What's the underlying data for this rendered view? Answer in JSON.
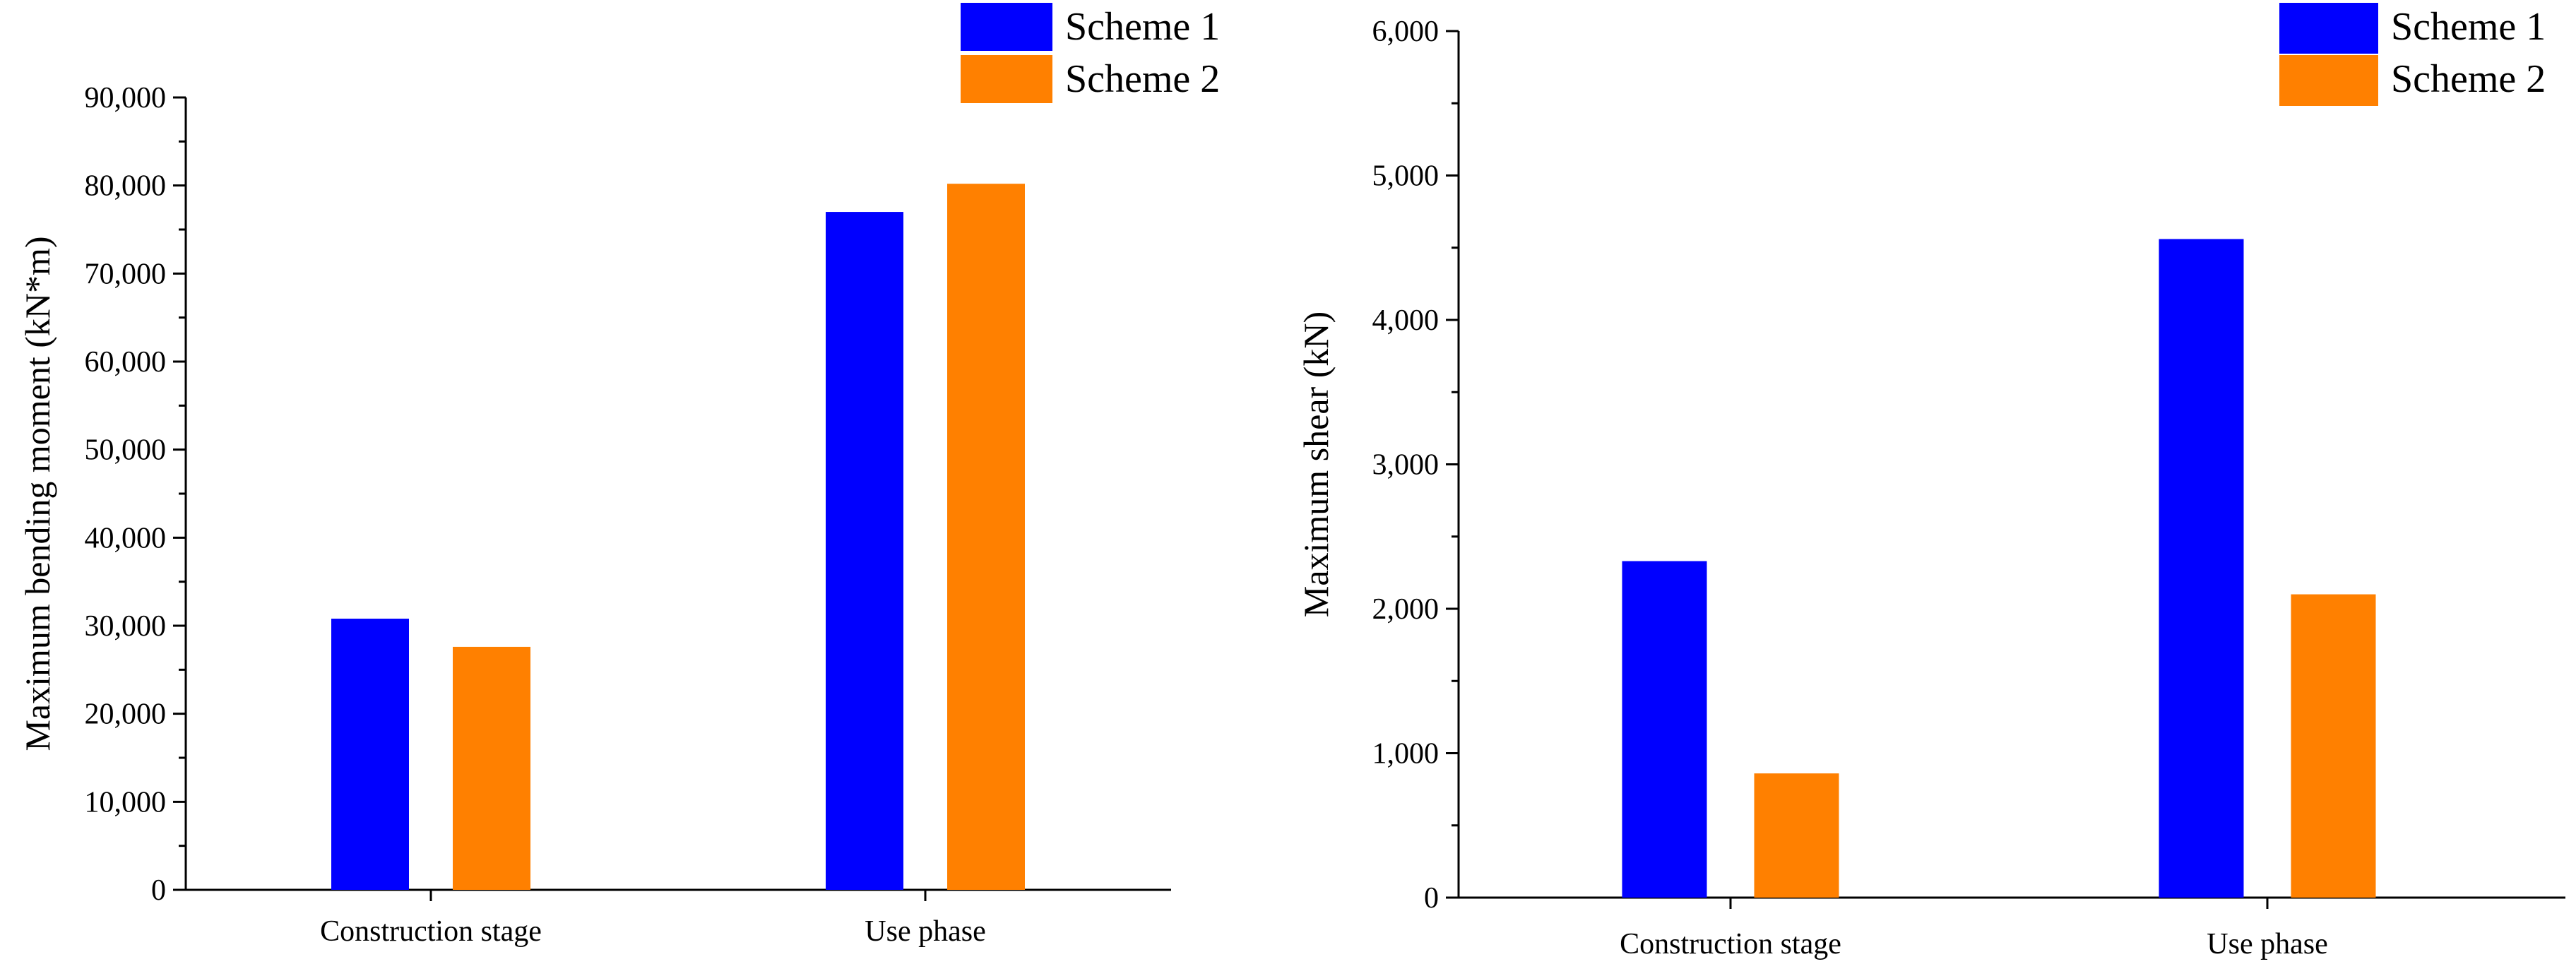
{
  "chart_data": [
    {
      "type": "bar",
      "title": "",
      "xlabel": "",
      "ylabel": "Maximum bending moment (kN*m)",
      "categories": [
        "Construction stage",
        "Use phase"
      ],
      "series": [
        {
          "name": "Scheme 1",
          "color": "#0000ff",
          "values": [
            30800,
            77000
          ]
        },
        {
          "name": "Scheme 2",
          "color": "#ff8000",
          "values": [
            27600,
            80200
          ]
        }
      ],
      "ylim": [
        0,
        90000
      ],
      "yticks": [
        0,
        10000,
        20000,
        30000,
        40000,
        50000,
        60000,
        70000,
        80000,
        90000
      ],
      "ytick_labels": [
        "0",
        "10,000",
        "20,000",
        "30,000",
        "40,000",
        "50,000",
        "60,000",
        "70,000",
        "80,000",
        "90,000"
      ],
      "legend": "top-right",
      "grid": false
    },
    {
      "type": "bar",
      "title": "",
      "xlabel": "",
      "ylabel": "Maximum shear (kN)",
      "categories": [
        "Construction stage",
        "Use phase"
      ],
      "series": [
        {
          "name": "Scheme 1",
          "color": "#0000ff",
          "values": [
            2330,
            4560
          ]
        },
        {
          "name": "Scheme 2",
          "color": "#ff8000",
          "values": [
            860,
            2100
          ]
        }
      ],
      "ylim": [
        0,
        6000
      ],
      "yticks": [
        0,
        1000,
        2000,
        3000,
        4000,
        5000,
        6000
      ],
      "ytick_labels": [
        "0",
        "1,000",
        "2,000",
        "3,000",
        "4,000",
        "5,000",
        "6,000"
      ],
      "legend": "top-right",
      "grid": false
    }
  ]
}
